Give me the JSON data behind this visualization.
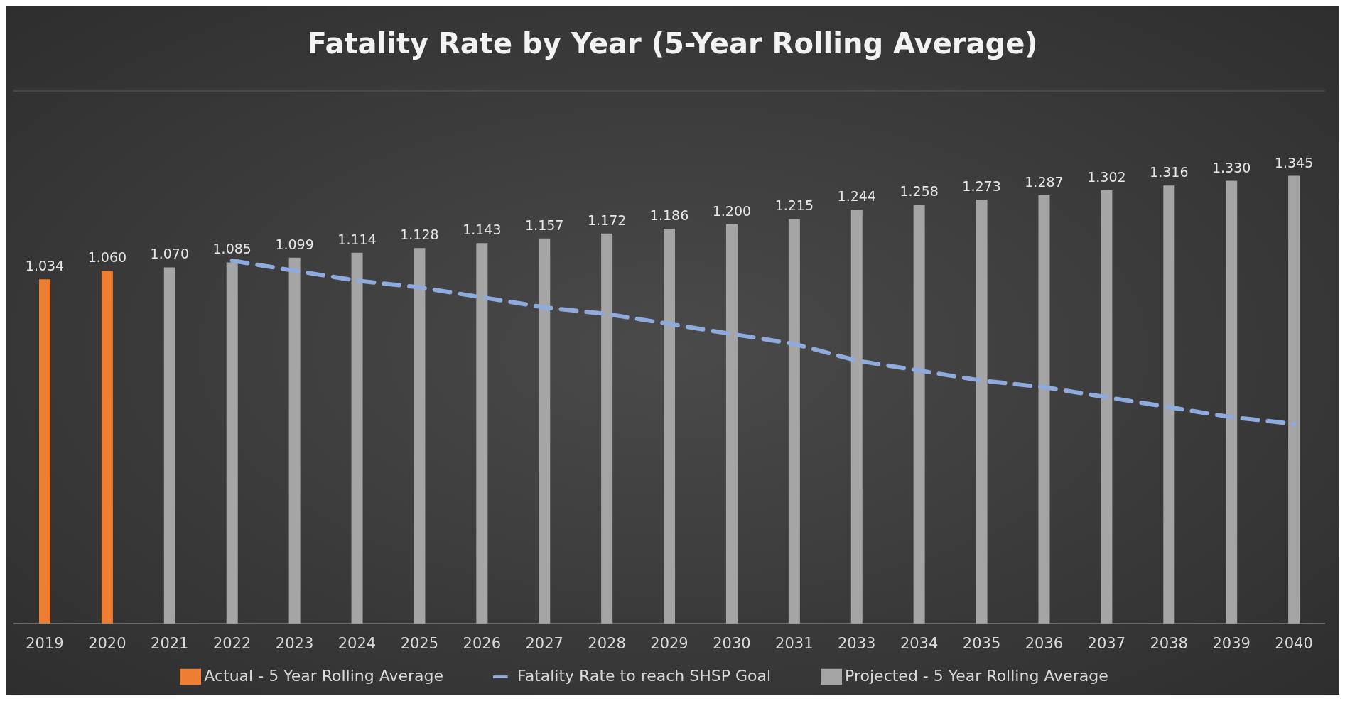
{
  "chart_data": {
    "type": "bar",
    "title": "Fatality  Rate  by  Year  (5-Year  Rolling  Average)",
    "categories": [
      "2019",
      "2020",
      "2021",
      "2022",
      "2023",
      "2024",
      "2025",
      "2026",
      "2027",
      "2028",
      "2029",
      "2030",
      "2031",
      "2033",
      "2034",
      "2035",
      "2036",
      "2037",
      "2038",
      "2039",
      "2040"
    ],
    "series": [
      {
        "name": "Actual - 5 Year Rolling Average",
        "color": "#ed7d31",
        "values": [
          1.034,
          1.06,
          null,
          null,
          null,
          null,
          null,
          null,
          null,
          null,
          null,
          null,
          null,
          null,
          null,
          null,
          null,
          null,
          null,
          null,
          null
        ],
        "value_labels": [
          "1.034",
          "1.060",
          null,
          null,
          null,
          null,
          null,
          null,
          null,
          null,
          null,
          null,
          null,
          null,
          null,
          null,
          null,
          null,
          null,
          null,
          null
        ]
      },
      {
        "name": "Projected - 5 Year Rolling Average",
        "color": "#a5a5a5",
        "values": [
          null,
          null,
          1.07,
          1.085,
          1.099,
          1.114,
          1.128,
          1.143,
          1.157,
          1.172,
          1.186,
          1.2,
          1.215,
          1.244,
          1.258,
          1.273,
          1.287,
          1.302,
          1.316,
          1.33,
          1.345
        ],
        "value_labels": [
          null,
          null,
          "1.070",
          "1.085",
          "1.099",
          "1.114",
          "1.128",
          "1.143",
          "1.157",
          "1.172",
          "1.186",
          "1.200",
          "1.215",
          "1.244",
          "1.258",
          "1.273",
          "1.287",
          "1.302",
          "1.316",
          "1.330",
          "1.345"
        ]
      },
      {
        "name": "Fatality Rate to reach SHSP Goal",
        "type": "line",
        "color": "#8faadc",
        "line_style": "dashed",
        "values": [
          null,
          null,
          null,
          1.09,
          1.06,
          1.03,
          1.01,
          0.98,
          0.95,
          0.93,
          0.9,
          0.87,
          0.84,
          0.79,
          0.76,
          0.73,
          0.71,
          0.68,
          0.65,
          0.62,
          0.6
        ]
      }
    ],
    "ylim": [
      0,
      1.6
    ],
    "tick_labels": "x",
    "grid": "y",
    "legend": "bottom",
    "marker": "none"
  }
}
